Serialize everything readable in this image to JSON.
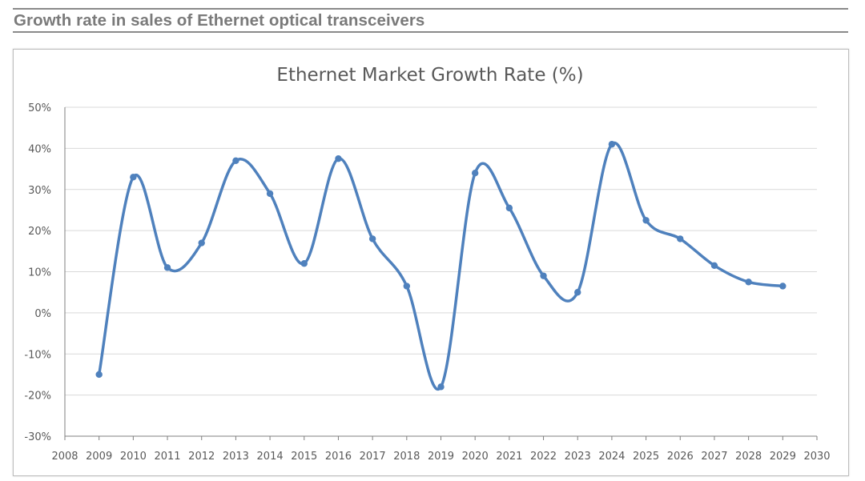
{
  "page": {
    "heading": "Growth rate in sales of Ethernet optical transceivers"
  },
  "colors": {
    "series": "#4f81bd",
    "grid": "#d9d9d9",
    "axis": "#595959",
    "heading": "#7a7a7a"
  },
  "chart_data": {
    "type": "line",
    "title": "Ethernet Market Growth Rate (%)",
    "xlabel": "",
    "ylabel": "",
    "smooth": true,
    "markers": true,
    "grid": true,
    "legend": "none",
    "xlim": [
      2008,
      2030
    ],
    "ylim": [
      -30,
      50
    ],
    "x_ticks": [
      "2008",
      "2009",
      "2010",
      "2011",
      "2012",
      "2013",
      "2014",
      "2015",
      "2016",
      "2017",
      "2018",
      "2019",
      "2020",
      "2021",
      "2022",
      "2023",
      "2024",
      "2025",
      "2026",
      "2027",
      "2028",
      "2029",
      "2030"
    ],
    "y_ticks": [
      {
        "value": 50,
        "label": "50%"
      },
      {
        "value": 40,
        "label": "40%"
      },
      {
        "value": 30,
        "label": "30%"
      },
      {
        "value": 20,
        "label": "20%"
      },
      {
        "value": 10,
        "label": "10%"
      },
      {
        "value": 0,
        "label": "0%"
      },
      {
        "value": -10,
        "label": "-10%"
      },
      {
        "value": -20,
        "label": "-20%"
      },
      {
        "value": -30,
        "label": "-30%"
      }
    ],
    "series": [
      {
        "x": [
          2009,
          2010,
          2011,
          2012,
          2013,
          2014,
          2015,
          2016,
          2017,
          2018,
          2019,
          2020,
          2021,
          2022,
          2023,
          2024,
          2025,
          2026,
          2027,
          2028,
          2029
        ],
        "values": [
          -15,
          33,
          11,
          17,
          37,
          29,
          12,
          37.5,
          18,
          6.5,
          -18,
          34,
          25.5,
          9,
          5,
          41,
          22.5,
          18,
          11.5,
          7.5,
          6.5
        ]
      }
    ]
  }
}
